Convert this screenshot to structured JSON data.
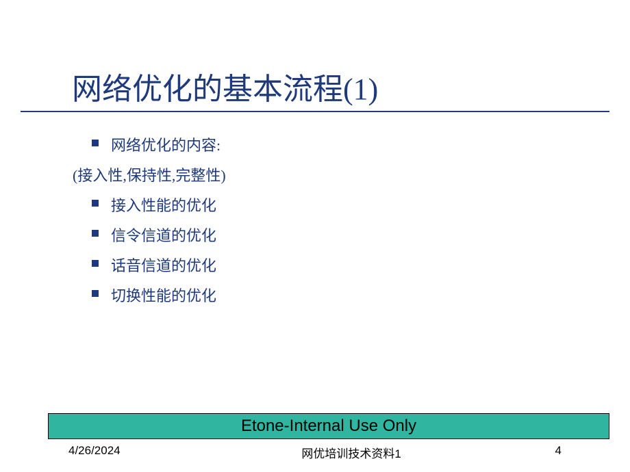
{
  "slide": {
    "title": "网络优化的基本流程(1)",
    "title_color": "#1f3a7a",
    "title_fontsize": 44,
    "underline_color": "#1f3a7a",
    "content": {
      "items": [
        {
          "text": "网络优化的内容:",
          "has_bullet": true
        },
        {
          "text": "(接入性,保持性,完整性)",
          "has_bullet": false
        },
        {
          "text": "接入性能的优化",
          "has_bullet": true
        },
        {
          "text": "信令信道的优化",
          "has_bullet": true
        },
        {
          "text": "话音信道的优化",
          "has_bullet": true
        },
        {
          "text": "切换性能的优化",
          "has_bullet": true
        }
      ],
      "text_color": "#1f3a7a",
      "bullet_color": "#1f3a7a",
      "fontsize": 22
    },
    "banner": {
      "text": "Etone-Internal Use Only",
      "background_color": "#2fb5a0",
      "border_color": "#000000",
      "fontsize": 24
    },
    "footer": {
      "date": "4/26/2024",
      "center": "网优培训技术资料1",
      "page": "4",
      "fontsize": 17
    }
  }
}
